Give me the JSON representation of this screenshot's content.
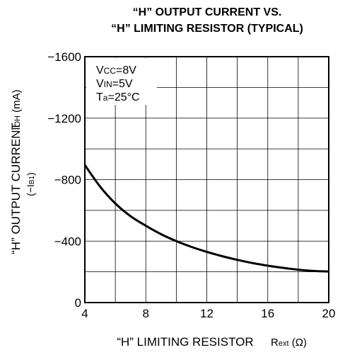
{
  "chart_data": {
    "type": "line",
    "title_line1": "“H” OUTPUT CURRENT VS.",
    "title_line2": "“H” LIMITING RESISTOR (TYPICAL)",
    "xlabel": "“H” LIMITING RESISTOR",
    "xlabel_symbol": "Rext (Ω)",
    "ylabel": "“H” OUTPUT CURRENT",
    "ylabel_symbol": "IOH (mA)",
    "ylabel_sub": "(−IB1)",
    "x_ticks": [
      "4",
      "8",
      "12",
      "16",
      "20"
    ],
    "y_ticks": [
      "−1600",
      "−1200",
      "−800",
      "−400",
      "0"
    ],
    "xlim": [
      4,
      20
    ],
    "ylim": [
      0,
      -1600
    ],
    "grid": true,
    "conditions": [
      "VCC=8V",
      "VIN=5V",
      "Ta=25°C"
    ],
    "series": [
      {
        "x": [
          4,
          5,
          6,
          7,
          8,
          9,
          10,
          11,
          12,
          13,
          14,
          15,
          16,
          17,
          18,
          19,
          20
        ],
        "values": [
          -895,
          -755,
          -645,
          -562,
          -500,
          -445,
          -400,
          -362,
          -330,
          -302,
          -278,
          -257,
          -240,
          -226,
          -214,
          -206,
          -202
        ]
      }
    ]
  }
}
